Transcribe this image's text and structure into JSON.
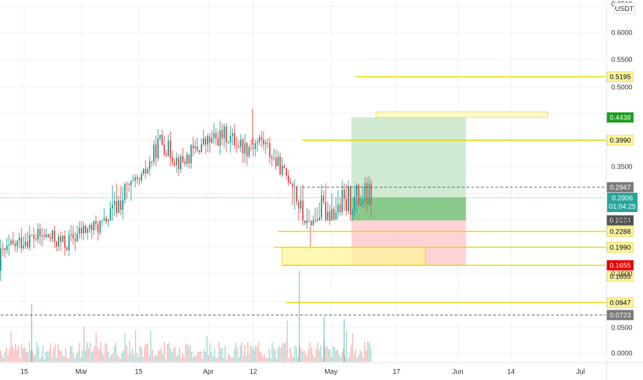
{
  "chart_data": {
    "type": "candlestick",
    "currency": "USDT",
    "y_axis": {
      "scale": "log",
      "ticks": [
        "0.6000",
        "0.5500",
        "0.5000",
        "0.3500",
        "0.2500",
        "0.1500",
        "0.0500",
        "0.0000"
      ],
      "top_clipped_label": "0.6500"
    },
    "x_axis": {
      "ticks": [
        "15",
        "Mar",
        "15",
        "Apr",
        "12",
        "May",
        "17",
        "Jun",
        "14",
        "Jul"
      ]
    },
    "grid": true,
    "last_price": "0.2906",
    "countdown": "01:04:25",
    "price_path": [
      [
        "Feb 05",
        0.155
      ],
      [
        "Feb 10",
        0.19
      ],
      [
        "Feb 15",
        0.215
      ],
      [
        "Feb 20",
        0.22
      ],
      [
        "Feb 25",
        0.205
      ],
      [
        "Mar 01",
        0.23
      ],
      [
        "Mar 05",
        0.24
      ],
      [
        "Mar 10",
        0.285
      ],
      [
        "Mar 15",
        0.31
      ],
      [
        "Mar 20",
        0.4
      ],
      [
        "Mar 25",
        0.355
      ],
      [
        "Mar 30",
        0.39
      ],
      [
        "Apr 05",
        0.41
      ],
      [
        "Apr 10",
        0.385
      ],
      [
        "Apr 14",
        0.4
      ],
      [
        "Apr 18",
        0.35
      ],
      [
        "Apr 22",
        0.3
      ],
      [
        "Apr 25",
        0.245
      ],
      [
        "Apr 28",
        0.275
      ],
      [
        "May 02",
        0.275
      ],
      [
        "May 06",
        0.285
      ],
      [
        "May 09",
        0.29
      ]
    ],
    "horizontal_levels": [
      {
        "value": "0.5195",
        "color": "#e6d600",
        "label_bg": "#fff7a8",
        "label_fg": "#000000",
        "style": "solid",
        "start": "May 07"
      },
      {
        "value": "0.4438",
        "color": "#e6d600",
        "label_bg": "#1b9e1b",
        "label_fg": "#ffffff",
        "style": "zone"
      },
      {
        "value": "0.3990",
        "color": "#e6d600",
        "label_bg": "#fff7a8",
        "label_fg": "#000000",
        "style": "solid",
        "start": "Apr 24"
      },
      {
        "value": "0.2947",
        "color": "#555555",
        "label_bg": "#7a7a7a",
        "label_fg": "#ffffff",
        "style": "dashed",
        "start": "Apr 24"
      },
      {
        "value": "0.2624",
        "color": "#555555",
        "label_bg": "#555555",
        "label_fg": "#ffffff",
        "style": "none"
      },
      {
        "value": "0.2288",
        "color": "#e6d600",
        "label_bg": "#fff7a8",
        "label_fg": "#000000",
        "style": "solid",
        "start": "Apr 18"
      },
      {
        "value": "0.1990",
        "color": "#e6d600",
        "label_bg": "#fff7a8",
        "label_fg": "#000000",
        "style": "solid",
        "start": "Apr 17"
      },
      {
        "value": "0.1655",
        "color": "#e6d600",
        "label_bg": "#e60000",
        "label_fg": "#ffffff",
        "style": "solid",
        "start": "Apr 19"
      },
      {
        "value": "0.1655",
        "color": "#e6d600",
        "label_bg": "#fff7a8",
        "label_fg": "#000000",
        "style": "none"
      },
      {
        "value": "0.0947",
        "color": "#e6d600",
        "label_bg": "#fff7a8",
        "label_fg": "#000000",
        "style": "solid",
        "start": "Apr 20"
      },
      {
        "value": "0.0723",
        "color": "#555555",
        "label_bg": "#7a7a7a",
        "label_fg": "#ffffff",
        "style": "dashed",
        "start": "Feb 01"
      }
    ],
    "position": {
      "entry": 0.2624,
      "target": 0.4438,
      "stop": 0.1655,
      "start": "May 06",
      "end": "Jun 03"
    },
    "zones": [
      {
        "name": "resistance",
        "from": 0.4438,
        "to": 0.4542,
        "start": "May 12",
        "end": "Jun 23",
        "fill": "#fff9c4",
        "stroke": "#e6d600"
      },
      {
        "name": "support",
        "from": 0.1655,
        "to": 0.199,
        "start": "Apr 19",
        "end": "May 24",
        "fill": "#fff59d",
        "stroke": "#e6d600"
      }
    ],
    "volume": {
      "shown": true,
      "color_up": "#26a69a",
      "color_down": "#ef5350"
    },
    "colors": {
      "up": "#26a69a",
      "down": "#ef5350",
      "profit_zone": "#c8e6c9",
      "profit_fill": "#81c784",
      "loss_zone": "#ffcdd2",
      "last_price_line": "#26a69a"
    }
  }
}
